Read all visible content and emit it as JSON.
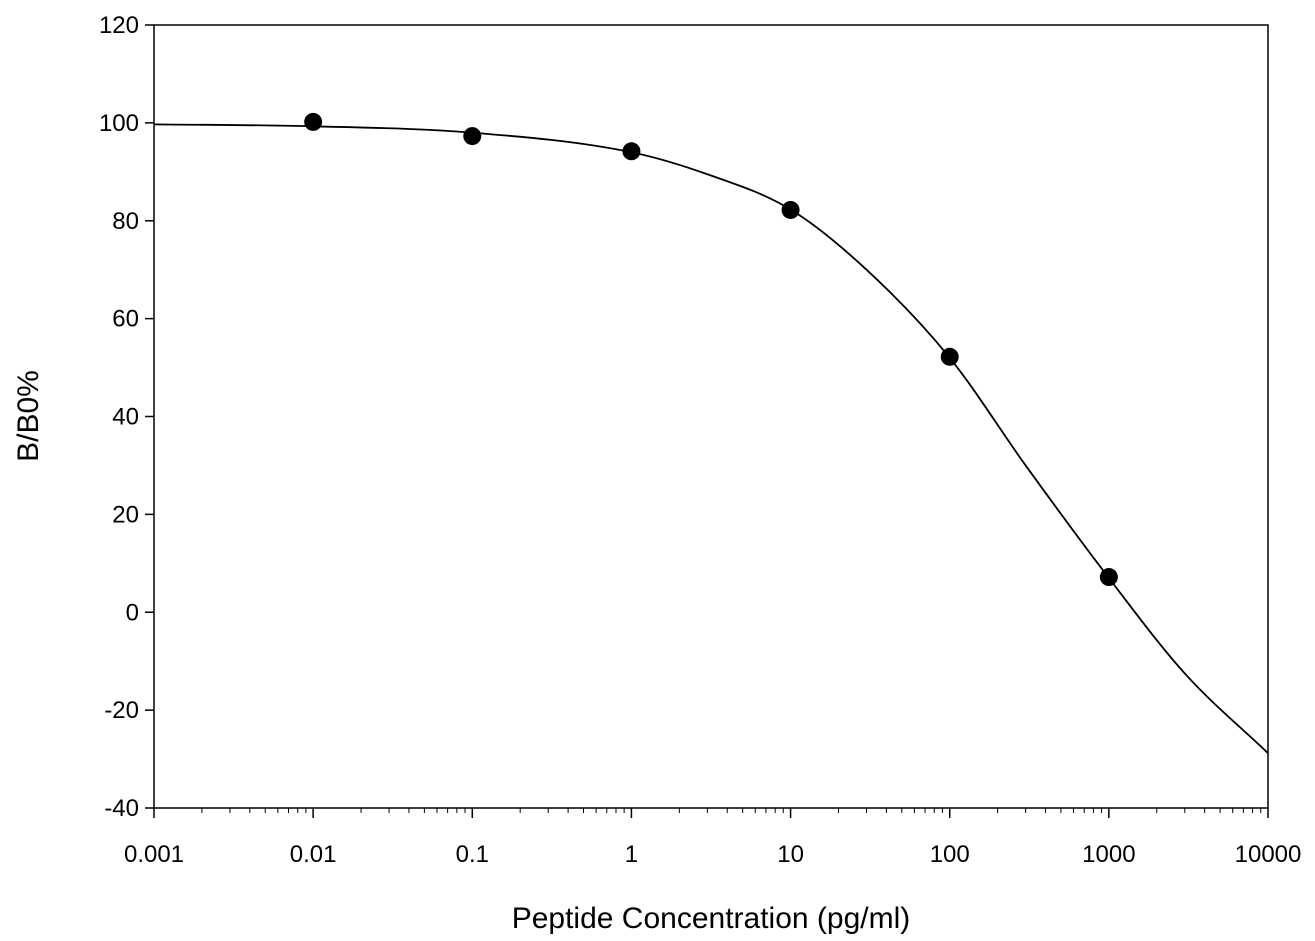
{
  "chart_data": {
    "type": "scatter",
    "xlabel": "Peptide Concentration (pg/ml)",
    "ylabel": "B/B0%",
    "x_scale": "log",
    "xlim": [
      0.001,
      10000
    ],
    "ylim": [
      -40,
      120
    ],
    "x_ticks": [
      0.001,
      0.01,
      0.1,
      1,
      10,
      100,
      1000,
      10000
    ],
    "x_tick_labels": [
      "0.001",
      "0.01",
      "0.1",
      "1",
      "10",
      "100",
      "1000",
      "10000"
    ],
    "y_ticks": [
      -40,
      -20,
      0,
      20,
      40,
      60,
      80,
      100,
      120
    ],
    "y_tick_labels": [
      "-40",
      "-20",
      "0",
      "20",
      "40",
      "60",
      "80",
      "100",
      "120"
    ],
    "grid": false,
    "series": [
      {
        "marker": "filled-circle",
        "x": [
          0.01,
          0.1,
          1,
          10,
          100,
          1000
        ],
        "y": [
          100.2,
          97.3,
          94.2,
          82.2,
          52.2,
          7.2
        ]
      }
    ],
    "fit_curve": {
      "x": [
        0.001,
        0.01,
        0.1,
        1,
        3,
        10,
        30,
        100,
        300,
        1000,
        3000,
        10000
      ],
      "y": [
        99.7,
        99.3,
        98.0,
        94.0,
        89.5,
        82.3,
        70.0,
        52.0,
        30.0,
        7.0,
        -12.5,
        -28.8
      ]
    }
  }
}
